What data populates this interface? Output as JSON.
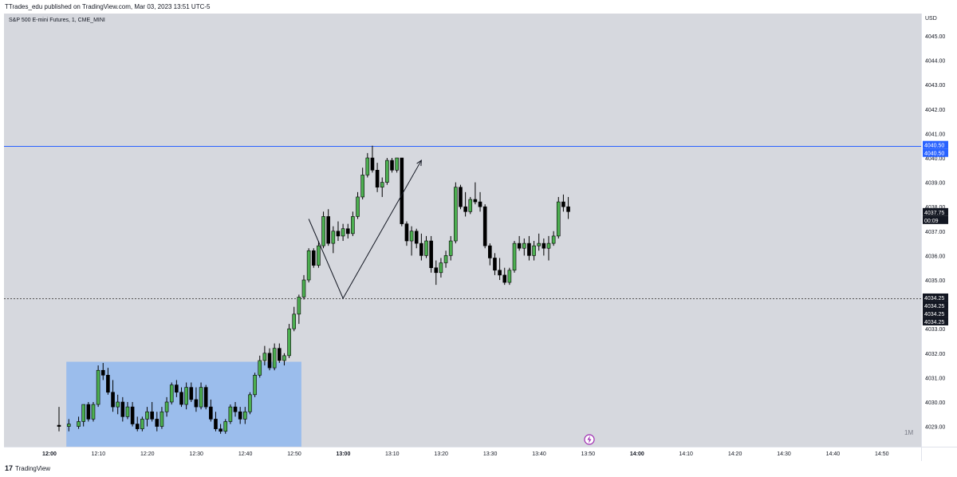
{
  "header": {
    "publisher_line": "TTrades_edu published on TradingView.com, Mar 03, 2023 13:51 UTC-5"
  },
  "symbol_line": "S&P 500 E-mini Futures, 1, CME_MINI",
  "currency": "USD",
  "interval_badge": "1M",
  "footer": {
    "brand": "TradingView",
    "brand_mark": "17"
  },
  "chart_data": {
    "type": "candlestick",
    "y_ticks": [
      4029,
      4030,
      4031,
      4032,
      4033,
      4034,
      4035,
      4036,
      4037,
      4038,
      4039,
      4040,
      4041,
      4042,
      4043,
      4044,
      4045
    ],
    "y_tick_labels": [
      "4029.00",
      "4030.00",
      "4031.00",
      "4032.00",
      "4033.00",
      "4034.00",
      "4035.00",
      "4036.00",
      "4037.00",
      "4038.00",
      "4039.00",
      "4040.00",
      "4041.00",
      "4042.00",
      "4043.00",
      "4044.00",
      "4045.00"
    ],
    "x_ticks": [
      "12:00",
      "12:10",
      "12:20",
      "12:30",
      "12:40",
      "12:50",
      "13:00",
      "13:10",
      "13:20",
      "13:30",
      "13:40",
      "13:50",
      "14:00",
      "14:10",
      "14:20",
      "14:30",
      "14:40",
      "14:50"
    ],
    "x_bold_ticks": [
      "12:00",
      "13:00",
      "14:00"
    ],
    "price_labels": [
      {
        "text": "4040.50",
        "value": 4040.5,
        "color": "#2962ff"
      },
      {
        "text": "4040.50",
        "value": 4040.5,
        "color": "#2962ff",
        "offset": 1
      },
      {
        "text": "4037.75",
        "value": 4037.75,
        "color": "#131722"
      },
      {
        "text": "00:09",
        "value": 4037.75,
        "color": "#131722",
        "offset": 1
      },
      {
        "text": "4034.25",
        "value": 4034.25,
        "color": "#131722"
      },
      {
        "text": "4034.25",
        "value": 4034.25,
        "color": "#131722",
        "offset": 1
      },
      {
        "text": "4034.25",
        "value": 4034.25,
        "color": "#131722",
        "offset": 2
      },
      {
        "text": "4034.25",
        "value": 4034.25,
        "color": "#131722",
        "offset": 3
      }
    ],
    "horizontal_levels": [
      {
        "value": 4040.5,
        "style": "solid",
        "color": "#2962ff"
      },
      {
        "value": 4034.25,
        "style": "dotted",
        "color": "#555555"
      }
    ],
    "box": {
      "t_start": 1.5,
      "t_end": 49.5,
      "low": 4029,
      "high": 4031.65,
      "color": "#90b8ee"
    },
    "projection_path": [
      {
        "t": 51,
        "price": 4037.5
      },
      {
        "t": 58,
        "price": 4034.25
      },
      {
        "t": 74,
        "price": 4039.9
      }
    ],
    "candles": [
      {
        "t": 0,
        "o": 4029.05,
        "h": 4029.8,
        "l": 4028.8,
        "c": 4029.0
      },
      {
        "t": 2,
        "o": 4029.0,
        "h": 4029.3,
        "l": 4028.8,
        "c": 4029.1
      },
      {
        "t": 4,
        "o": 4029.0,
        "h": 4029.4,
        "l": 4028.9,
        "c": 4029.2
      },
      {
        "t": 5,
        "o": 4029.2,
        "h": 4029.9,
        "l": 4029.0,
        "c": 4029.9
      },
      {
        "t": 6,
        "o": 4029.9,
        "h": 4030.0,
        "l": 4029.2,
        "c": 4029.3
      },
      {
        "t": 7,
        "o": 4029.3,
        "h": 4030.0,
        "l": 4029.2,
        "c": 4029.9
      },
      {
        "t": 8,
        "o": 4029.9,
        "h": 4031.5,
        "l": 4029.8,
        "c": 4031.3
      },
      {
        "t": 9,
        "o": 4031.3,
        "h": 4031.6,
        "l": 4030.9,
        "c": 4031.1
      },
      {
        "t": 10,
        "o": 4031.1,
        "h": 4031.4,
        "l": 4030.3,
        "c": 4030.4
      },
      {
        "t": 11,
        "o": 4030.4,
        "h": 4030.9,
        "l": 4029.6,
        "c": 4029.8
      },
      {
        "t": 12,
        "o": 4029.8,
        "h": 4030.3,
        "l": 4029.5,
        "c": 4030.0
      },
      {
        "t": 13,
        "o": 4030.0,
        "h": 4030.2,
        "l": 4029.2,
        "c": 4029.4
      },
      {
        "t": 14,
        "o": 4029.4,
        "h": 4030.0,
        "l": 4029.3,
        "c": 4029.8
      },
      {
        "t": 15,
        "o": 4029.8,
        "h": 4030.0,
        "l": 4029.0,
        "c": 4029.1
      },
      {
        "t": 16,
        "o": 4029.1,
        "h": 4029.4,
        "l": 4028.8,
        "c": 4028.9
      },
      {
        "t": 17,
        "o": 4028.9,
        "h": 4029.4,
        "l": 4028.8,
        "c": 4029.3
      },
      {
        "t": 18,
        "o": 4029.3,
        "h": 4029.8,
        "l": 4029.0,
        "c": 4029.6
      },
      {
        "t": 19,
        "o": 4029.6,
        "h": 4030.0,
        "l": 4029.2,
        "c": 4029.3
      },
      {
        "t": 20,
        "o": 4029.3,
        "h": 4029.6,
        "l": 4028.8,
        "c": 4029.0
      },
      {
        "t": 21,
        "o": 4029.0,
        "h": 4029.8,
        "l": 4028.9,
        "c": 4029.6
      },
      {
        "t": 22,
        "o": 4029.6,
        "h": 4030.2,
        "l": 4029.4,
        "c": 4030.0
      },
      {
        "t": 23,
        "o": 4030.0,
        "h": 4030.8,
        "l": 4029.9,
        "c": 4030.7
      },
      {
        "t": 24,
        "o": 4030.7,
        "h": 4030.9,
        "l": 4030.2,
        "c": 4030.4
      },
      {
        "t": 25,
        "o": 4030.4,
        "h": 4030.6,
        "l": 4029.8,
        "c": 4029.9
      },
      {
        "t": 26,
        "o": 4029.9,
        "h": 4030.8,
        "l": 4029.7,
        "c": 4030.6
      },
      {
        "t": 27,
        "o": 4030.6,
        "h": 4030.8,
        "l": 4030.0,
        "c": 4030.1
      },
      {
        "t": 28,
        "o": 4030.1,
        "h": 4030.6,
        "l": 4029.6,
        "c": 4029.8
      },
      {
        "t": 29,
        "o": 4029.8,
        "h": 4030.8,
        "l": 4029.7,
        "c": 4030.6
      },
      {
        "t": 30,
        "o": 4030.6,
        "h": 4030.7,
        "l": 4029.7,
        "c": 4029.8
      },
      {
        "t": 31,
        "o": 4029.8,
        "h": 4030.1,
        "l": 4029.2,
        "c": 4029.3
      },
      {
        "t": 32,
        "o": 4029.3,
        "h": 4029.6,
        "l": 4028.8,
        "c": 4028.9
      },
      {
        "t": 33,
        "o": 4028.9,
        "h": 4029.1,
        "l": 4028.7,
        "c": 4028.8
      },
      {
        "t": 34,
        "o": 4028.8,
        "h": 4029.3,
        "l": 4028.7,
        "c": 4029.2
      },
      {
        "t": 35,
        "o": 4029.2,
        "h": 4029.9,
        "l": 4029.1,
        "c": 4029.8
      },
      {
        "t": 36,
        "o": 4029.8,
        "h": 4030.0,
        "l": 4029.4,
        "c": 4029.6
      },
      {
        "t": 37,
        "o": 4029.6,
        "h": 4029.8,
        "l": 4029.1,
        "c": 4029.3
      },
      {
        "t": 38,
        "o": 4029.3,
        "h": 4029.8,
        "l": 4029.1,
        "c": 4029.6
      },
      {
        "t": 39,
        "o": 4029.6,
        "h": 4030.4,
        "l": 4029.5,
        "c": 4030.3
      },
      {
        "t": 40,
        "o": 4030.3,
        "h": 4031.2,
        "l": 4030.2,
        "c": 4031.1
      },
      {
        "t": 41,
        "o": 4031.1,
        "h": 4031.9,
        "l": 4031.0,
        "c": 4031.7
      },
      {
        "t": 42,
        "o": 4031.7,
        "h": 4032.3,
        "l": 4031.5,
        "c": 4032.0
      },
      {
        "t": 43,
        "o": 4032.0,
        "h": 4032.2,
        "l": 4031.3,
        "c": 4031.4
      },
      {
        "t": 44,
        "o": 4031.4,
        "h": 4032.4,
        "l": 4031.3,
        "c": 4032.2
      },
      {
        "t": 45,
        "o": 4032.2,
        "h": 4032.4,
        "l": 4031.6,
        "c": 4031.7
      },
      {
        "t": 46,
        "o": 4031.7,
        "h": 4032.0,
        "l": 4031.5,
        "c": 4031.9
      },
      {
        "t": 47,
        "o": 4031.9,
        "h": 4033.2,
        "l": 4031.8,
        "c": 4033.0
      },
      {
        "t": 48,
        "o": 4033.0,
        "h": 4033.9,
        "l": 4032.9,
        "c": 4033.6
      },
      {
        "t": 49,
        "o": 4033.6,
        "h": 4034.4,
        "l": 4033.2,
        "c": 4034.3
      },
      {
        "t": 50,
        "o": 4034.3,
        "h": 4035.2,
        "l": 4034.2,
        "c": 4035.0
      },
      {
        "t": 51,
        "o": 4035.0,
        "h": 4036.3,
        "l": 4034.9,
        "c": 4036.2
      },
      {
        "t": 52,
        "o": 4036.2,
        "h": 4036.3,
        "l": 4035.5,
        "c": 4035.6
      },
      {
        "t": 53,
        "o": 4035.6,
        "h": 4036.6,
        "l": 4035.5,
        "c": 4036.4
      },
      {
        "t": 54,
        "o": 4036.4,
        "h": 4037.8,
        "l": 4036.3,
        "c": 4037.6
      },
      {
        "t": 55,
        "o": 4037.6,
        "h": 4037.9,
        "l": 4036.4,
        "c": 4036.5
      },
      {
        "t": 56,
        "o": 4036.5,
        "h": 4037.2,
        "l": 4036.1,
        "c": 4037.0
      },
      {
        "t": 57,
        "o": 4037.0,
        "h": 4037.4,
        "l": 4036.6,
        "c": 4036.8
      },
      {
        "t": 58,
        "o": 4036.8,
        "h": 4037.3,
        "l": 4036.6,
        "c": 4037.1
      },
      {
        "t": 59,
        "o": 4037.1,
        "h": 4037.3,
        "l": 4036.7,
        "c": 4036.9
      },
      {
        "t": 60,
        "o": 4036.9,
        "h": 4037.8,
        "l": 4036.8,
        "c": 4037.6
      },
      {
        "t": 61,
        "o": 4037.6,
        "h": 4038.6,
        "l": 4037.5,
        "c": 4038.4
      },
      {
        "t": 62,
        "o": 4038.4,
        "h": 4039.6,
        "l": 4038.3,
        "c": 4039.3
      },
      {
        "t": 63,
        "o": 4039.3,
        "h": 4040.2,
        "l": 4039.2,
        "c": 4040.0
      },
      {
        "t": 64,
        "o": 4040.0,
        "h": 4040.5,
        "l": 4039.4,
        "c": 4039.5
      },
      {
        "t": 65,
        "o": 4039.5,
        "h": 4039.8,
        "l": 4038.6,
        "c": 4038.8
      },
      {
        "t": 66,
        "o": 4038.8,
        "h": 4039.2,
        "l": 4038.4,
        "c": 4039.0
      },
      {
        "t": 67,
        "o": 4039.0,
        "h": 4040.0,
        "l": 4038.9,
        "c": 4039.9
      },
      {
        "t": 68,
        "o": 4039.9,
        "h": 4040.0,
        "l": 4039.4,
        "c": 4039.5
      },
      {
        "t": 69,
        "o": 4039.5,
        "h": 4040.0,
        "l": 4039.4,
        "c": 4040.0
      },
      {
        "t": 70,
        "o": 4040.0,
        "h": 4040.0,
        "l": 4037.2,
        "c": 4037.3
      },
      {
        "t": 71,
        "o": 4037.3,
        "h": 4037.4,
        "l": 4036.4,
        "c": 4036.6
      },
      {
        "t": 72,
        "o": 4036.6,
        "h": 4037.2,
        "l": 4036.0,
        "c": 4037.0
      },
      {
        "t": 73,
        "o": 4037.0,
        "h": 4037.1,
        "l": 4036.3,
        "c": 4036.5
      },
      {
        "t": 74,
        "o": 4036.5,
        "h": 4036.9,
        "l": 4035.8,
        "c": 4036.0
      },
      {
        "t": 75,
        "o": 4036.0,
        "h": 4036.8,
        "l": 4035.9,
        "c": 4036.6
      },
      {
        "t": 76,
        "o": 4036.6,
        "h": 4036.8,
        "l": 4035.3,
        "c": 4035.5
      },
      {
        "t": 77,
        "o": 4035.5,
        "h": 4035.8,
        "l": 4034.8,
        "c": 4035.3
      },
      {
        "t": 78,
        "o": 4035.3,
        "h": 4035.9,
        "l": 4035.1,
        "c": 4035.7
      },
      {
        "t": 79,
        "o": 4035.7,
        "h": 4036.2,
        "l": 4035.5,
        "c": 4036.0
      },
      {
        "t": 80,
        "o": 4036.0,
        "h": 4036.8,
        "l": 4035.8,
        "c": 4036.6
      },
      {
        "t": 81,
        "o": 4036.6,
        "h": 4039.0,
        "l": 4036.5,
        "c": 4038.8
      },
      {
        "t": 82,
        "o": 4038.8,
        "h": 4038.9,
        "l": 4037.9,
        "c": 4038.0
      },
      {
        "t": 83,
        "o": 4038.0,
        "h": 4038.6,
        "l": 4037.6,
        "c": 4037.8
      },
      {
        "t": 84,
        "o": 4037.8,
        "h": 4038.4,
        "l": 4037.7,
        "c": 4038.3
      },
      {
        "t": 85,
        "o": 4038.3,
        "h": 4039.0,
        "l": 4038.1,
        "c": 4038.2
      },
      {
        "t": 86,
        "o": 4038.2,
        "h": 4038.6,
        "l": 4037.8,
        "c": 4038.0
      },
      {
        "t": 87,
        "o": 4038.0,
        "h": 4038.1,
        "l": 4036.3,
        "c": 4036.4
      },
      {
        "t": 88,
        "o": 4036.4,
        "h": 4036.5,
        "l": 4035.6,
        "c": 4035.9
      },
      {
        "t": 89,
        "o": 4035.9,
        "h": 4036.1,
        "l": 4035.2,
        "c": 4035.4
      },
      {
        "t": 90,
        "o": 4035.4,
        "h": 4035.9,
        "l": 4035.0,
        "c": 4035.2
      },
      {
        "t": 91,
        "o": 4035.2,
        "h": 4035.5,
        "l": 4034.8,
        "c": 4034.9
      },
      {
        "t": 92,
        "o": 4034.9,
        "h": 4035.5,
        "l": 4034.8,
        "c": 4035.4
      },
      {
        "t": 93,
        "o": 4035.4,
        "h": 4036.6,
        "l": 4035.3,
        "c": 4036.5
      },
      {
        "t": 94,
        "o": 4036.5,
        "h": 4036.8,
        "l": 4036.2,
        "c": 4036.3
      },
      {
        "t": 95,
        "o": 4036.3,
        "h": 4036.7,
        "l": 4036.0,
        "c": 4036.5
      },
      {
        "t": 96,
        "o": 4036.5,
        "h": 4036.8,
        "l": 4035.8,
        "c": 4036.0
      },
      {
        "t": 97,
        "o": 4036.0,
        "h": 4036.6,
        "l": 4035.8,
        "c": 4036.4
      },
      {
        "t": 98,
        "o": 4036.4,
        "h": 4036.9,
        "l": 4036.2,
        "c": 4036.5
      },
      {
        "t": 99,
        "o": 4036.5,
        "h": 4036.7,
        "l": 4036.0,
        "c": 4036.3
      },
      {
        "t": 100,
        "o": 4036.3,
        "h": 4036.8,
        "l": 4035.8,
        "c": 4036.5
      },
      {
        "t": 101,
        "o": 4036.5,
        "h": 4037.0,
        "l": 4036.4,
        "c": 4036.8
      },
      {
        "t": 102,
        "o": 4036.8,
        "h": 4038.4,
        "l": 4036.7,
        "c": 4038.2
      },
      {
        "t": 103,
        "o": 4038.2,
        "h": 4038.5,
        "l": 4037.8,
        "c": 4038.0
      },
      {
        "t": 104,
        "o": 4038.0,
        "h": 4038.4,
        "l": 4037.5,
        "c": 4037.8
      }
    ]
  }
}
